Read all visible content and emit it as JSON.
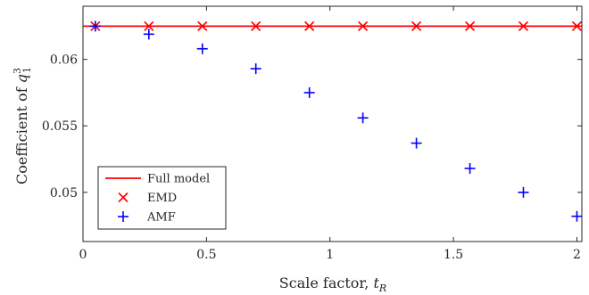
{
  "chart_data": {
    "type": "scatter",
    "title": "",
    "xlabel": {
      "text": "Scale factor, ",
      "symbol": "t",
      "subscript": "R"
    },
    "ylabel": {
      "text": "Coefficient of ",
      "symbol": "q",
      "subscript": "1",
      "superscript": "3"
    },
    "xlim": [
      0,
      2.02
    ],
    "ylim": [
      0.0463,
      0.064
    ],
    "x_ticks": [
      0,
      0.5,
      1,
      1.5,
      2
    ],
    "x_tick_labels": [
      "0",
      "0.5",
      "1",
      "1.5",
      "2"
    ],
    "y_ticks": [
      0.05,
      0.055,
      0.06
    ],
    "y_tick_labels": [
      "0.05",
      "0.055",
      "0.06"
    ],
    "grid": false,
    "legend_position": "bottom-left",
    "series": [
      {
        "name": "Full model",
        "kind": "line",
        "color": "#ff0000",
        "x": [
          0,
          2.02
        ],
        "y": [
          0.0625,
          0.0625
        ]
      },
      {
        "name": "EMD",
        "kind": "marker",
        "marker": "x",
        "color": "#ff0000",
        "x": [
          0.05,
          0.2667,
          0.4833,
          0.7,
          0.9167,
          1.1333,
          1.35,
          1.5667,
          1.7833,
          2.0
        ],
        "y": [
          0.0625,
          0.0625,
          0.0625,
          0.0625,
          0.0625,
          0.0625,
          0.0625,
          0.0625,
          0.0625,
          0.0625
        ]
      },
      {
        "name": "AMF",
        "kind": "marker",
        "marker": "+",
        "color": "#0000ff",
        "x": [
          0.05,
          0.2667,
          0.4833,
          0.7,
          0.9167,
          1.1333,
          1.35,
          1.5667,
          1.7833,
          2.0
        ],
        "y": [
          0.0625,
          0.0619,
          0.0608,
          0.0593,
          0.0575,
          0.0556,
          0.0537,
          0.0518,
          0.05,
          0.0482
        ]
      }
    ]
  }
}
